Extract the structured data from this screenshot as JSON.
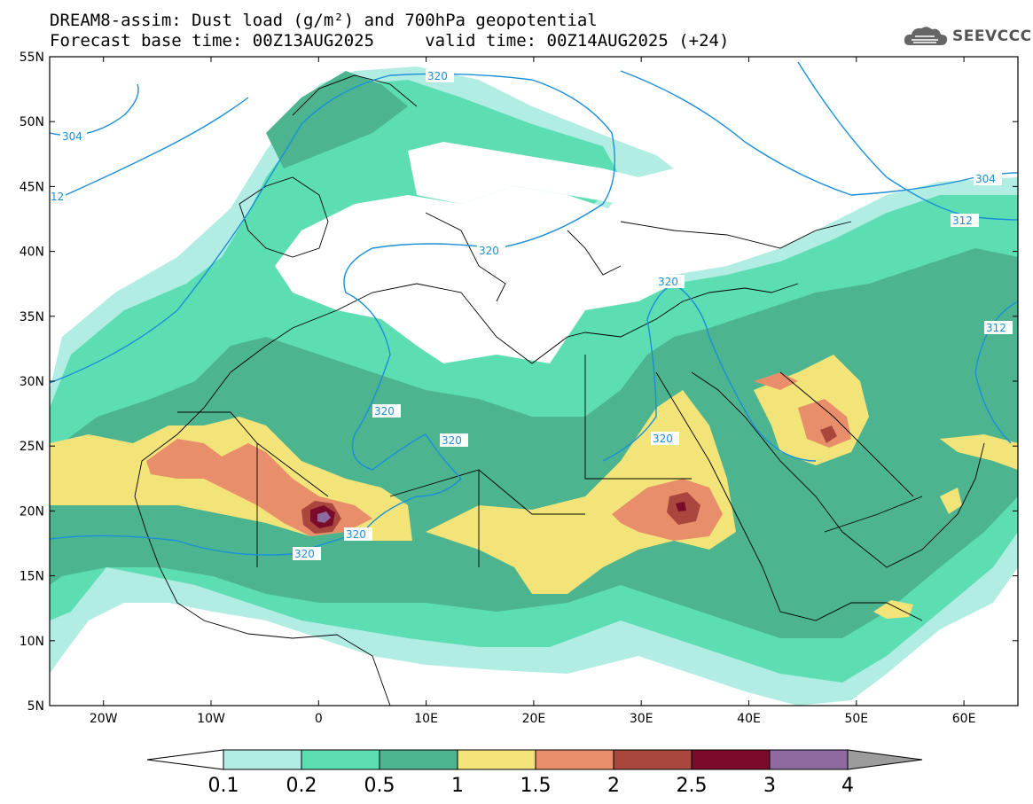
{
  "title": {
    "line1": "DREAM8-assim: Dust load (g/m²) and 700hPa geopotential",
    "line2": "Forecast base time: 00Z13AUG2025     valid time: 00Z14AUG2025 (+24)"
  },
  "logo": {
    "text": "SEEVCCC",
    "icon": "cloud-icon"
  },
  "axes": {
    "lat_labels": [
      "55N",
      "50N",
      "45N",
      "40N",
      "35N",
      "30N",
      "25N",
      "20N",
      "15N",
      "10N",
      "5N"
    ],
    "lon_labels": [
      "20W",
      "10W",
      "0",
      "10E",
      "20E",
      "30E",
      "40E",
      "50E",
      "60E"
    ]
  },
  "colorbar": {
    "labels": [
      "0.1",
      "0.2",
      "0.5",
      "1",
      "1.5",
      "2",
      "2.5",
      "3",
      "4"
    ],
    "colors": [
      "#ffffff",
      "#b2ede4",
      "#5cdeb2",
      "#4cb48f",
      "#f3e47a",
      "#e88e6a",
      "#a9463d",
      "#7a0b2a",
      "#8d6aa0",
      "#9c9c9c"
    ]
  },
  "contour_labels": {
    "c304a": "304",
    "c312a": "12",
    "c320a": "320",
    "c320b": "320",
    "c320c": "320",
    "c320d": "320",
    "c320e": "320",
    "c320f": "320",
    "c320g": "320",
    "c320h": "320",
    "c304b": "304",
    "c312b": "312",
    "c312c": "312"
  }
}
